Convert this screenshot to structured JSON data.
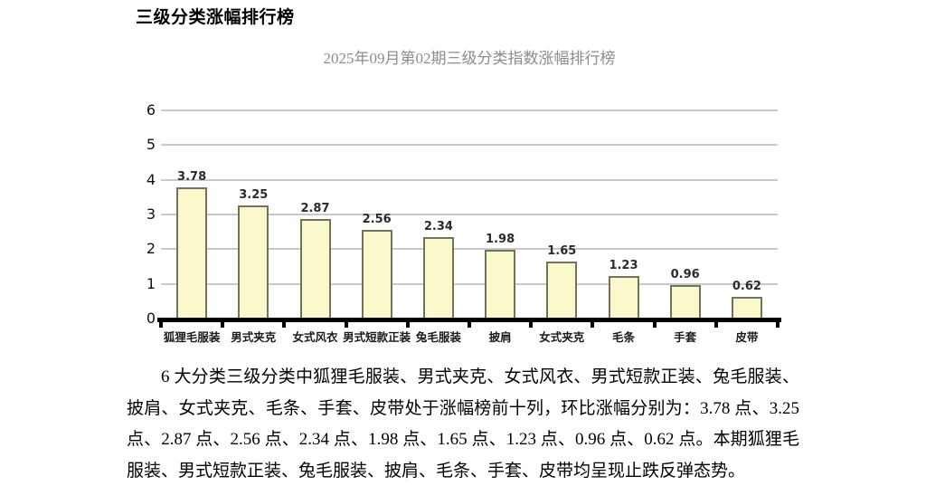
{
  "page": {
    "heading": "三级分类涨幅排行榜"
  },
  "chart_data": {
    "type": "bar",
    "title": "2025年09月第02期三级分类指数涨幅排行榜",
    "categories": [
      "狐狸毛服装",
      "男式夹克",
      "女式风衣",
      "男式短款正装",
      "兔毛服装",
      "披肩",
      "女式夹克",
      "毛条",
      "手套",
      "皮带"
    ],
    "values": [
      3.78,
      3.25,
      2.87,
      2.56,
      2.34,
      1.98,
      1.65,
      1.23,
      0.96,
      0.62
    ],
    "value_labels": [
      "3.78",
      "3.25",
      "2.87",
      "2.56",
      "2.34",
      "1.98",
      "1.65",
      "1.23",
      "0.96",
      "0.62"
    ],
    "xlabel": "",
    "ylabel": "",
    "ylim": [
      0,
      6
    ],
    "yticks": [
      0,
      1,
      2,
      3,
      4,
      5,
      6
    ],
    "grid": true,
    "legend": "none",
    "colors": {
      "bar_fill": "#FBF8CC",
      "bar_border": "#73735A",
      "gridline": "#C9C9C9",
      "axis": "#000000",
      "title": "#8C8C8C",
      "value_label": "#2B2B2B"
    }
  },
  "paragraph": {
    "text": "6 大分类三级分类中狐狸毛服装、男式夹克、女式风衣、男式短款正装、兔毛服装、披肩、女式夹克、毛条、手套、皮带处于涨幅榜前十列，环比涨幅分别为：3.78 点、3.25 点、2.87 点、2.56 点、2.34 点、1.98 点、1.65 点、1.23 点、0.96 点、0.62 点。本期狐狸毛服装、男式短款正装、兔毛服装、披肩、毛条、手套、皮带均呈现止跌反弹态势。"
  }
}
